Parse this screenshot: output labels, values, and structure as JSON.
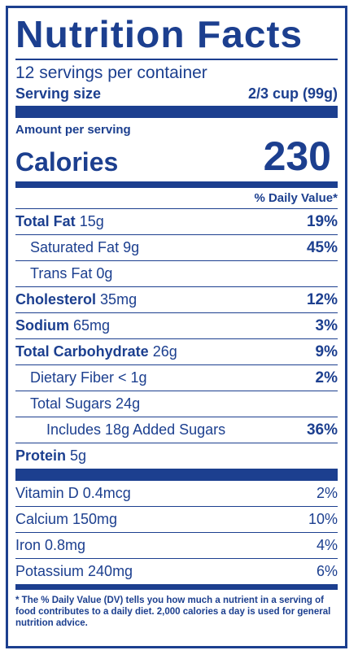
{
  "title": "Nutrition Facts",
  "servings": "12 servings per container",
  "serving_size": {
    "label": "Serving size",
    "value": "2/3 cup (99g)"
  },
  "amount_per_serving": "Amount per serving",
  "calories": {
    "label": "Calories",
    "value": "230"
  },
  "daily_value_header": "% Daily Value*",
  "nutrients": [
    {
      "name": "Total Fat",
      "amount": "15g",
      "percent": "19%"
    },
    {
      "name": "Saturated Fat 9g",
      "percent": "45%"
    },
    {
      "name": "Trans Fat 0g",
      "percent": ""
    },
    {
      "name": "Cholesterol",
      "amount": "35mg",
      "percent": "12%"
    },
    {
      "name": "Sodium",
      "amount": "65mg",
      "percent": "3%"
    },
    {
      "name": "Total Carbohydrate",
      "amount": "26g",
      "percent": "9%"
    },
    {
      "name": "Dietary Fiber < 1g",
      "percent": "2%"
    },
    {
      "name": "Total Sugars 24g",
      "percent": ""
    },
    {
      "name": "Includes 18g Added Sugars",
      "percent": "36%"
    },
    {
      "name": "Protein",
      "amount": "5g",
      "percent": ""
    }
  ],
  "vitamins": [
    {
      "name": "Vitamin D 0.4mcg",
      "percent": "2%"
    },
    {
      "name": "Calcium 150mg",
      "percent": "10%"
    },
    {
      "name": "Iron 0.8mg",
      "percent": "4%"
    },
    {
      "name": "Potassium 240mg",
      "percent": "6%"
    }
  ],
  "footnote": "* The % Daily Value (DV) tells you how much a nutrient in a serving of food contributes to a daily diet. 2,000 calories a day is used for general nutrition advice.",
  "colors": {
    "ink": "#1c3f8f",
    "background": "#ffffff"
  }
}
